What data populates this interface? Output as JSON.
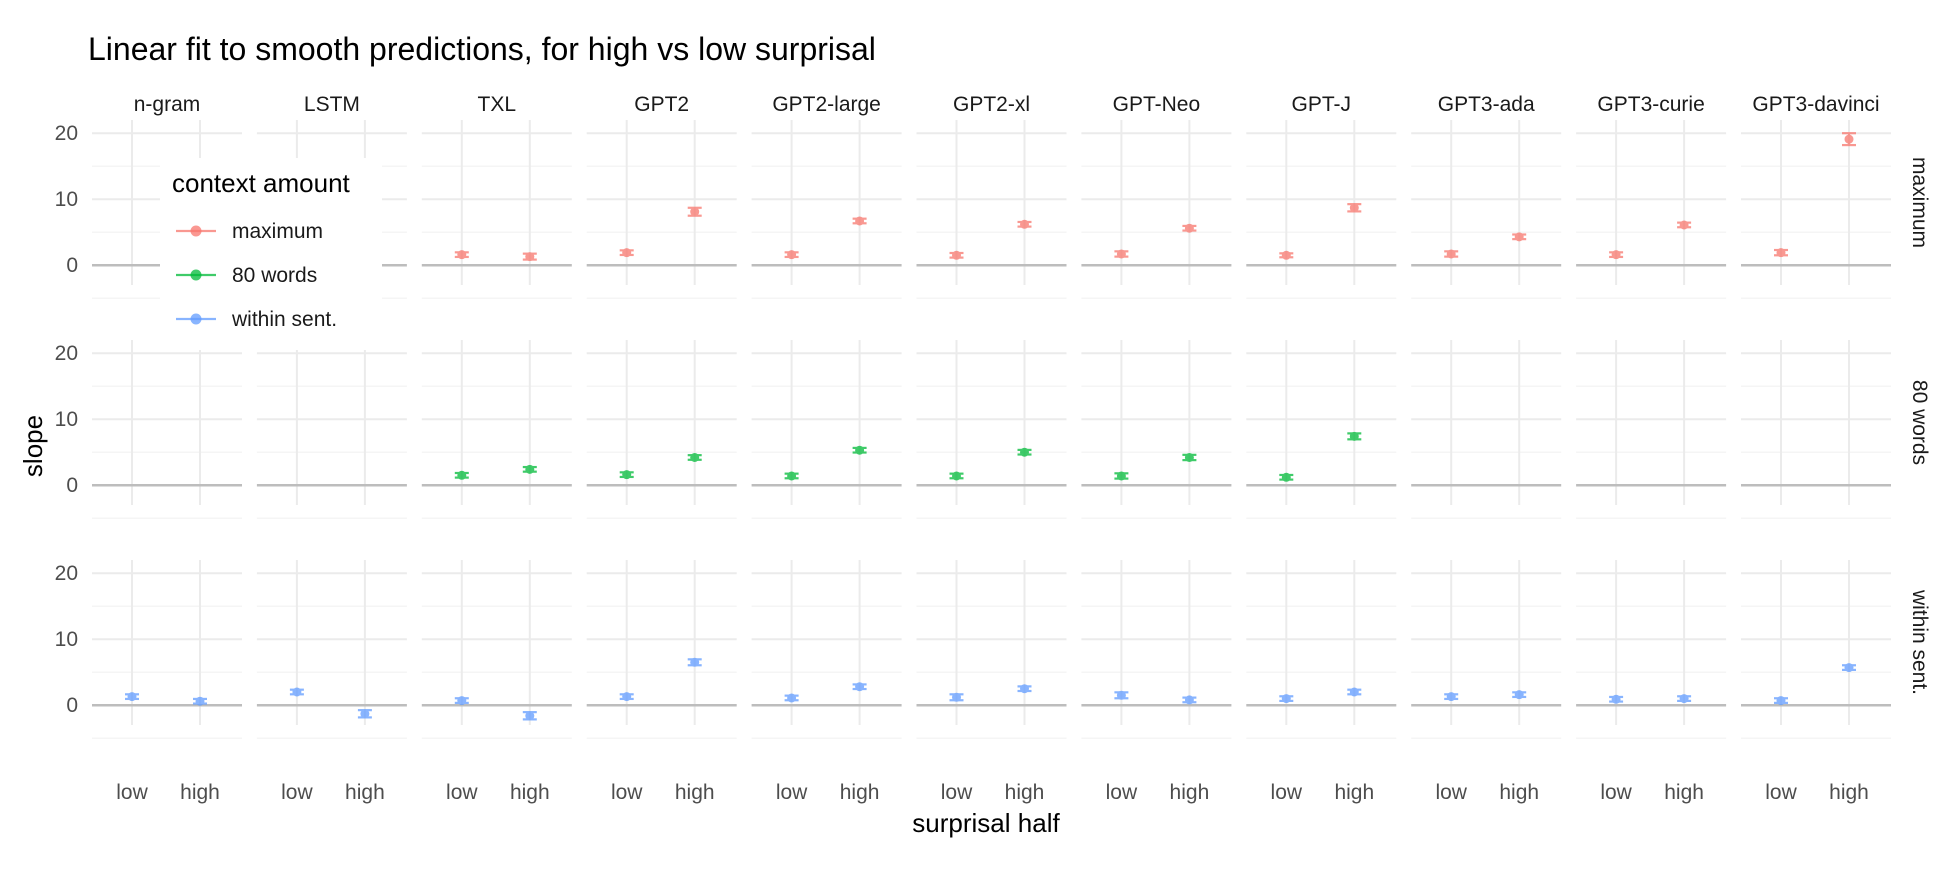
{
  "chart_data": {
    "type": "scatter",
    "title": "Linear fit to smooth predictions, for high vs low surprisal",
    "xlabel": "surprisal half",
    "ylabel": "slope",
    "x_categories": [
      "low",
      "high"
    ],
    "y_ticks": [
      0,
      10,
      20
    ],
    "ylim": [
      -3,
      22
    ],
    "grid": true,
    "models": [
      "n-gram",
      "LSTM",
      "TXL",
      "GPT2",
      "GPT2-large",
      "GPT2-xl",
      "GPT-Neo",
      "GPT-J",
      "GPT3-ada",
      "GPT3-curie",
      "GPT3-davinci"
    ],
    "rows": [
      "maximum",
      "80 words",
      "within sent."
    ],
    "legend": {
      "title": "context amount",
      "placement": "top-left",
      "entries": [
        "maximum",
        "80 words",
        "within sent."
      ]
    },
    "colors": {
      "maximum": "#F8766D",
      "80 words": "#00BA38",
      "within sent.": "#619CFF"
    },
    "series": [
      {
        "name": "maximum",
        "points": [
          {
            "model": "TXL",
            "half": "low",
            "y": 1.6,
            "err": 0.35
          },
          {
            "model": "TXL",
            "half": "high",
            "y": 1.3,
            "err": 0.45
          },
          {
            "model": "GPT2",
            "half": "low",
            "y": 1.9,
            "err": 0.35
          },
          {
            "model": "GPT2",
            "half": "high",
            "y": 8.1,
            "err": 0.6
          },
          {
            "model": "GPT2-large",
            "half": "low",
            "y": 1.6,
            "err": 0.35
          },
          {
            "model": "GPT2-large",
            "half": "high",
            "y": 6.7,
            "err": 0.35
          },
          {
            "model": "GPT2-xl",
            "half": "low",
            "y": 1.5,
            "err": 0.35
          },
          {
            "model": "GPT2-xl",
            "half": "high",
            "y": 6.2,
            "err": 0.35
          },
          {
            "model": "GPT-Neo",
            "half": "low",
            "y": 1.7,
            "err": 0.4
          },
          {
            "model": "GPT-Neo",
            "half": "high",
            "y": 5.6,
            "err": 0.35
          },
          {
            "model": "GPT-J",
            "half": "low",
            "y": 1.5,
            "err": 0.3
          },
          {
            "model": "GPT-J",
            "half": "high",
            "y": 8.7,
            "err": 0.55
          },
          {
            "model": "GPT3-ada",
            "half": "low",
            "y": 1.7,
            "err": 0.4
          },
          {
            "model": "GPT3-ada",
            "half": "high",
            "y": 4.3,
            "err": 0.35
          },
          {
            "model": "GPT3-curie",
            "half": "low",
            "y": 1.6,
            "err": 0.35
          },
          {
            "model": "GPT3-curie",
            "half": "high",
            "y": 6.1,
            "err": 0.35
          },
          {
            "model": "GPT3-davinci",
            "half": "low",
            "y": 1.9,
            "err": 0.4
          },
          {
            "model": "GPT3-davinci",
            "half": "high",
            "y": 19.1,
            "err": 0.9
          }
        ]
      },
      {
        "name": "80 words",
        "points": [
          {
            "model": "TXL",
            "half": "low",
            "y": 1.5,
            "err": 0.35
          },
          {
            "model": "TXL",
            "half": "high",
            "y": 2.4,
            "err": 0.35
          },
          {
            "model": "GPT2",
            "half": "low",
            "y": 1.6,
            "err": 0.35
          },
          {
            "model": "GPT2",
            "half": "high",
            "y": 4.2,
            "err": 0.35
          },
          {
            "model": "GPT2-large",
            "half": "low",
            "y": 1.4,
            "err": 0.35
          },
          {
            "model": "GPT2-large",
            "half": "high",
            "y": 5.3,
            "err": 0.35
          },
          {
            "model": "GPT2-xl",
            "half": "low",
            "y": 1.4,
            "err": 0.35
          },
          {
            "model": "GPT2-xl",
            "half": "high",
            "y": 5.0,
            "err": 0.35
          },
          {
            "model": "GPT-Neo",
            "half": "low",
            "y": 1.4,
            "err": 0.4
          },
          {
            "model": "GPT-Neo",
            "half": "high",
            "y": 4.2,
            "err": 0.4
          },
          {
            "model": "GPT-J",
            "half": "low",
            "y": 1.2,
            "err": 0.35
          },
          {
            "model": "GPT-J",
            "half": "high",
            "y": 7.4,
            "err": 0.45
          }
        ]
      },
      {
        "name": "within sent.",
        "points": [
          {
            "model": "n-gram",
            "half": "low",
            "y": 1.3,
            "err": 0.35
          },
          {
            "model": "n-gram",
            "half": "high",
            "y": 0.6,
            "err": 0.35
          },
          {
            "model": "LSTM",
            "half": "low",
            "y": 2.0,
            "err": 0.35
          },
          {
            "model": "LSTM",
            "half": "high",
            "y": -1.3,
            "err": 0.55
          },
          {
            "model": "TXL",
            "half": "low",
            "y": 0.7,
            "err": 0.35
          },
          {
            "model": "TXL",
            "half": "high",
            "y": -1.6,
            "err": 0.55
          },
          {
            "model": "GPT2",
            "half": "low",
            "y": 1.3,
            "err": 0.35
          },
          {
            "model": "GPT2",
            "half": "high",
            "y": 6.5,
            "err": 0.45
          },
          {
            "model": "GPT2-large",
            "half": "low",
            "y": 1.1,
            "err": 0.35
          },
          {
            "model": "GPT2-large",
            "half": "high",
            "y": 2.8,
            "err": 0.35
          },
          {
            "model": "GPT2-xl",
            "half": "low",
            "y": 1.2,
            "err": 0.45
          },
          {
            "model": "GPT2-xl",
            "half": "high",
            "y": 2.5,
            "err": 0.35
          },
          {
            "model": "GPT-Neo",
            "half": "low",
            "y": 1.5,
            "err": 0.45
          },
          {
            "model": "GPT-Neo",
            "half": "high",
            "y": 0.8,
            "err": 0.35
          },
          {
            "model": "GPT-J",
            "half": "low",
            "y": 1.0,
            "err": 0.35
          },
          {
            "model": "GPT-J",
            "half": "high",
            "y": 2.0,
            "err": 0.35
          },
          {
            "model": "GPT3-ada",
            "half": "low",
            "y": 1.3,
            "err": 0.35
          },
          {
            "model": "GPT3-ada",
            "half": "high",
            "y": 1.6,
            "err": 0.35
          },
          {
            "model": "GPT3-curie",
            "half": "low",
            "y": 0.9,
            "err": 0.35
          },
          {
            "model": "GPT3-curie",
            "half": "high",
            "y": 1.0,
            "err": 0.35
          },
          {
            "model": "GPT3-davinci",
            "half": "low",
            "y": 0.7,
            "err": 0.35
          },
          {
            "model": "GPT3-davinci",
            "half": "high",
            "y": 5.7,
            "err": 0.35
          }
        ]
      }
    ]
  }
}
